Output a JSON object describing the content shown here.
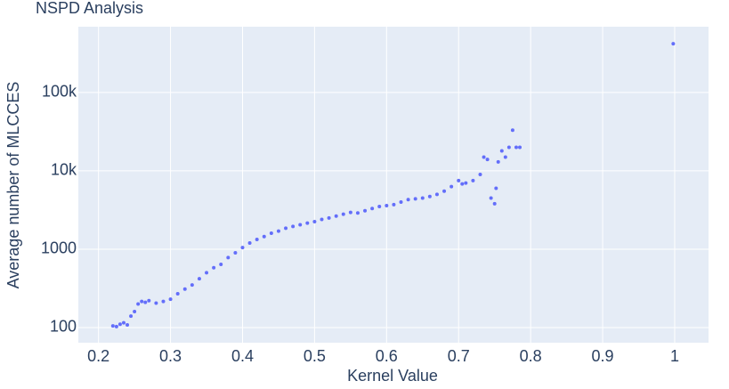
{
  "chart_data": {
    "type": "scatter",
    "title": "NSPD Analysis",
    "x_label": "Kernel Value",
    "y_label": "Average number of MLCCES",
    "log_y": true,
    "grid": true,
    "color": "#636efa",
    "xlim": [
      0.172,
      1.047
    ],
    "ylim": [
      64,
      692000
    ],
    "xticks": [
      0.2,
      0.3,
      0.4,
      0.5,
      0.6,
      0.7,
      0.8,
      0.9,
      1
    ],
    "yticks": [
      100,
      1000,
      {
        "value": 10000,
        "label": "10k"
      },
      {
        "value": 100000,
        "label": "100k"
      }
    ],
    "x": [
      0.22,
      0.225,
      0.23,
      0.235,
      0.24,
      0.245,
      0.25,
      0.255,
      0.26,
      0.265,
      0.27,
      0.28,
      0.29,
      0.3,
      0.31,
      0.32,
      0.33,
      0.34,
      0.35,
      0.36,
      0.37,
      0.38,
      0.39,
      0.4,
      0.41,
      0.42,
      0.43,
      0.44,
      0.45,
      0.46,
      0.47,
      0.48,
      0.49,
      0.5,
      0.51,
      0.52,
      0.53,
      0.54,
      0.55,
      0.56,
      0.57,
      0.58,
      0.59,
      0.6,
      0.61,
      0.62,
      0.63,
      0.64,
      0.65,
      0.66,
      0.67,
      0.68,
      0.69,
      0.7,
      0.705,
      0.71,
      0.72,
      0.73,
      0.735,
      0.74,
      0.745,
      0.75,
      0.752,
      0.755,
      0.76,
      0.765,
      0.77,
      0.775,
      0.78,
      0.785,
      0.998
    ],
    "values": [
      105,
      103,
      110,
      115,
      108,
      140,
      160,
      200,
      215,
      210,
      220,
      205,
      215,
      230,
      270,
      310,
      350,
      420,
      500,
      580,
      640,
      780,
      900,
      1050,
      1200,
      1330,
      1450,
      1600,
      1700,
      1850,
      1950,
      2050,
      2150,
      2250,
      2400,
      2500,
      2650,
      2800,
      2950,
      2900,
      3100,
      3300,
      3500,
      3600,
      3700,
      4000,
      4300,
      4400,
      4500,
      4700,
      5000,
      5500,
      6300,
      7500,
      6800,
      7000,
      7500,
      9000,
      15000,
      14000,
      4500,
      3800,
      6000,
      13000,
      18000,
      15000,
      20000,
      33000,
      20000,
      20000,
      420000
    ]
  }
}
